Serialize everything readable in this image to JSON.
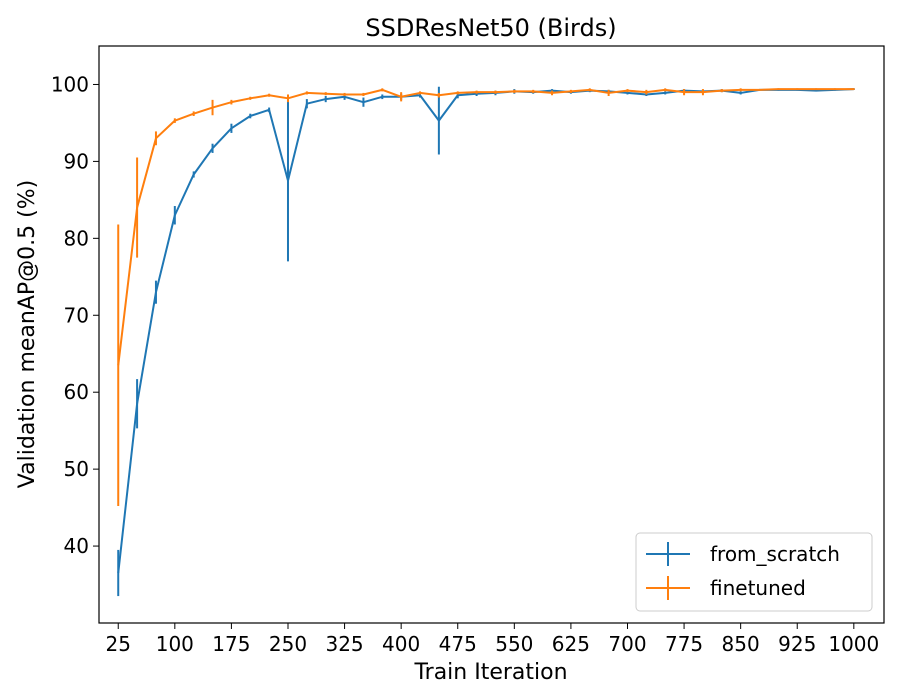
{
  "chart_data": {
    "type": "line",
    "title": "SSDResNet50 (Birds)",
    "xlabel": "Train Iteration",
    "ylabel": "Validation meanAP@0.5 (%)",
    "xlim": [
      -0.5,
      1040
    ],
    "ylim": [
      30,
      105
    ],
    "xticks": [
      25,
      100,
      175,
      250,
      325,
      400,
      475,
      550,
      625,
      700,
      775,
      850,
      925,
      1000
    ],
    "xtick_labels": [
      "25",
      "100",
      "175",
      "250",
      "325",
      "400",
      "475",
      "550",
      "625",
      "700",
      "775",
      "850",
      "925",
      "1000"
    ],
    "yticks": [
      40,
      50,
      60,
      70,
      80,
      90,
      100
    ],
    "ytick_labels": [
      "40",
      "50",
      "60",
      "70",
      "80",
      "90",
      "100"
    ],
    "grid": false,
    "legend_position": "bottom-right",
    "x": [
      25,
      50,
      75,
      100,
      125,
      150,
      175,
      200,
      225,
      250,
      275,
      300,
      325,
      350,
      375,
      400,
      425,
      450,
      475,
      500,
      525,
      550,
      575,
      600,
      625,
      650,
      675,
      700,
      725,
      750,
      775,
      800,
      825,
      850,
      875,
      900,
      925,
      950,
      975,
      1000
    ],
    "series": [
      {
        "name": "from_scratch",
        "color": "#1f77b4",
        "values": [
          36.5,
          58.5,
          73.0,
          83.0,
          88.3,
          91.7,
          94.3,
          95.9,
          96.7,
          87.5,
          97.5,
          98.1,
          98.4,
          97.7,
          98.4,
          98.4,
          98.6,
          95.3,
          98.6,
          98.8,
          98.9,
          99.1,
          99.0,
          99.2,
          99.0,
          99.2,
          99.1,
          98.9,
          98.7,
          98.9,
          99.2,
          99.1,
          99.2,
          98.9,
          99.3,
          99.3,
          99.3,
          99.2,
          99.3,
          99.4
        ],
        "errors": [
          3.0,
          3.2,
          1.5,
          1.2,
          0.4,
          0.6,
          0.6,
          0.3,
          0.3,
          10.5,
          0.6,
          0.4,
          0.4,
          0.6,
          0.3,
          0.4,
          0.3,
          4.4,
          0.4,
          0.3,
          0.3,
          0.3,
          0.2,
          0.2,
          0.2,
          0.2,
          0.2,
          0.2,
          0.2,
          0.2,
          0.2,
          0.2,
          0.2,
          0.2,
          0.1,
          0.1,
          0.1,
          0.1,
          0.1,
          0.1
        ]
      },
      {
        "name": "finetuned",
        "color": "#ff7f0e",
        "values": [
          63.5,
          84.0,
          93.0,
          95.3,
          96.2,
          97.0,
          97.7,
          98.2,
          98.6,
          98.2,
          98.9,
          98.8,
          98.7,
          98.7,
          99.3,
          98.4,
          98.9,
          98.6,
          98.9,
          99.0,
          99.0,
          99.1,
          99.1,
          98.9,
          99.1,
          99.3,
          98.9,
          99.2,
          99.0,
          99.3,
          99.0,
          99.0,
          99.2,
          99.3,
          99.3,
          99.4,
          99.4,
          99.4,
          99.4,
          99.4
        ],
        "errors": [
          18.3,
          6.5,
          0.9,
          0.3,
          0.3,
          1.0,
          0.3,
          0.2,
          0.2,
          0.5,
          0.2,
          0.2,
          0.2,
          0.2,
          0.2,
          0.6,
          0.2,
          0.3,
          0.2,
          0.2,
          0.2,
          0.2,
          0.2,
          0.3,
          0.2,
          0.2,
          0.4,
          0.2,
          0.3,
          0.2,
          0.4,
          0.4,
          0.2,
          0.2,
          0.1,
          0.1,
          0.1,
          0.1,
          0.1,
          0.1
        ]
      }
    ]
  }
}
